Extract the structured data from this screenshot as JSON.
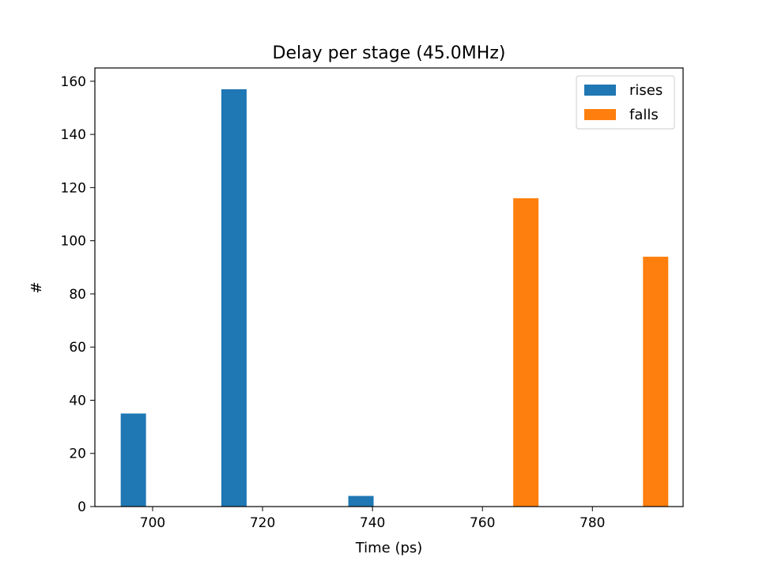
{
  "chart_data": {
    "type": "bar",
    "title": "Delay per stage (45.0MHz)",
    "xlabel": "Time (ps)",
    "ylabel": "#",
    "xlim": [
      689.5,
      796.5
    ],
    "ylim": [
      0,
      165
    ],
    "x_ticks": [
      700,
      720,
      740,
      760,
      780
    ],
    "y_ticks": [
      0,
      20,
      40,
      60,
      80,
      100,
      120,
      140,
      160
    ],
    "grid": false,
    "legend_position": "top-right",
    "bar_width": 4.6,
    "series": [
      {
        "name": "rises",
        "color": "#1f77b4",
        "bars": [
          {
            "x": 696.5,
            "value": 35
          },
          {
            "x": 714.8,
            "value": 157
          },
          {
            "x": 737.9,
            "value": 4
          }
        ]
      },
      {
        "name": "falls",
        "color": "#ff7f0e",
        "bars": [
          {
            "x": 767.9,
            "value": 116
          },
          {
            "x": 791.5,
            "value": 94
          }
        ]
      }
    ]
  }
}
